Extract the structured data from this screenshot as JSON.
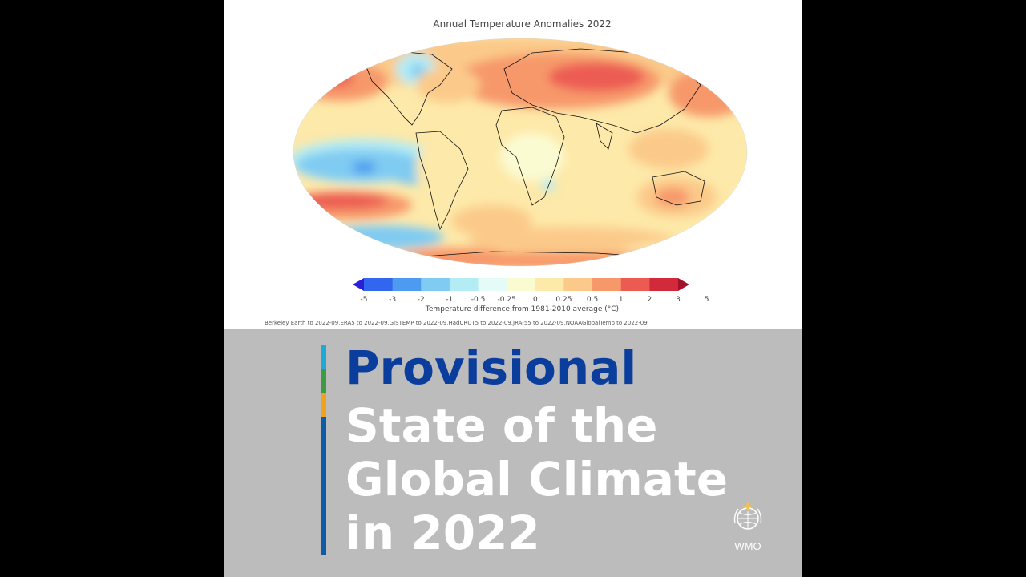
{
  "map": {
    "title": "Annual Temperature Anomalies 2022",
    "colorbar": {
      "ticks": [
        "-5",
        "-3",
        "-2",
        "-1",
        "-0.5",
        "-0.25",
        "0",
        "0.25",
        "0.5",
        "1",
        "2",
        "3",
        "5"
      ],
      "colors": [
        "#2a1fd8",
        "#3366ee",
        "#4c9bf0",
        "#7fcbf2",
        "#b4ecf5",
        "#e4fbf7",
        "#fbfbd2",
        "#fde9a9",
        "#fbca8a",
        "#f7986a",
        "#ec5b52",
        "#d22a3a",
        "#a2102c"
      ],
      "label": "Temperature difference from 1981-2010 average (°C)"
    },
    "sources": "Berkeley Earth to 2022-09,ERA5 to 2022-09,GISTEMP to 2022-09,HadCRUT5 to 2022-09,JRA-55 to 2022-09,NOAAGlobalTemp to 2022-09"
  },
  "headline": {
    "line1": "Provisional",
    "line2": "State of the",
    "line3": "Global Climate",
    "line4": "in 2022"
  },
  "accent_colors": [
    "#1fa9d6",
    "#3e9a44",
    "#f0a21c",
    "#0f5ba8"
  ],
  "logo": {
    "text": "WMO"
  }
}
